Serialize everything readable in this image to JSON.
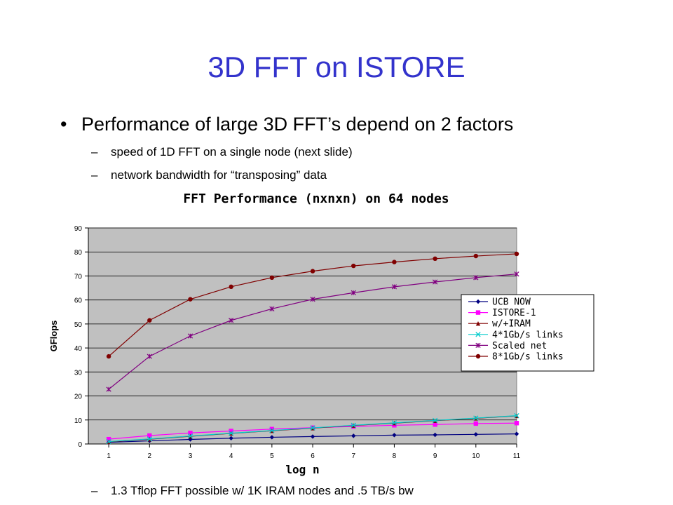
{
  "slide": {
    "title": "3D FFT on ISTORE",
    "bullet_marker": "•",
    "bullet": "Performance of large 3D FFT’s depend on 2 factors",
    "sub_marker": "–",
    "sub1": "speed of 1D FFT on a single node (next slide)",
    "sub2": "network bandwidth for “transposing” data",
    "sub3": "1.3 Tflop FFT possible w/ 1K IRAM nodes and .5 TB/s bw"
  },
  "chart_data": {
    "type": "line",
    "title": "FFT Performance (nxnxn) on 64 nodes",
    "xlabel": "log n",
    "ylabel": "GFlops",
    "x": [
      1,
      2,
      3,
      4,
      5,
      6,
      7,
      8,
      9,
      10,
      11
    ],
    "ylim": [
      0,
      90
    ],
    "yticks": [
      0,
      10,
      20,
      30,
      40,
      50,
      60,
      70,
      80,
      90
    ],
    "grid": true,
    "plot_background": "#c0c0c0",
    "legend_position": "right",
    "series": [
      {
        "name": "UCB NOW",
        "color": "#000080",
        "marker": "diamond",
        "values": [
          0.7,
          1.3,
          1.9,
          2.4,
          2.8,
          3.1,
          3.4,
          3.7,
          3.8,
          4.0,
          4.2
        ]
      },
      {
        "name": "ISTORE-1",
        "color": "#ff00ff",
        "marker": "square",
        "values": [
          2.0,
          3.5,
          4.6,
          5.4,
          6.2,
          6.8,
          7.3,
          7.8,
          8.1,
          8.5,
          8.7
        ]
      },
      {
        "name": "w/+IRAM",
        "color": "#800000",
        "marker": "triangle",
        "values": [
          0.9,
          2.0,
          3.2,
          4.4,
          5.5,
          6.6,
          7.7,
          8.7,
          9.7,
          10.7,
          11.7
        ]
      },
      {
        "name": "4*1Gb/s links",
        "color": "#00cccc",
        "marker": "x",
        "values": [
          1.0,
          2.1,
          3.3,
          4.5,
          5.6,
          6.7,
          7.8,
          8.8,
          9.8,
          10.8,
          11.8
        ]
      },
      {
        "name": "Scaled net",
        "color": "#800080",
        "marker": "star",
        "values": [
          22.8,
          36.5,
          45.0,
          51.5,
          56.3,
          60.3,
          63.0,
          65.5,
          67.5,
          69.3,
          70.8
        ]
      },
      {
        "name": "8*1Gb/s links",
        "color": "#800000",
        "marker": "circle",
        "values": [
          36.5,
          51.5,
          60.3,
          65.5,
          69.3,
          72.0,
          74.2,
          75.8,
          77.2,
          78.3,
          79.2
        ]
      }
    ]
  }
}
